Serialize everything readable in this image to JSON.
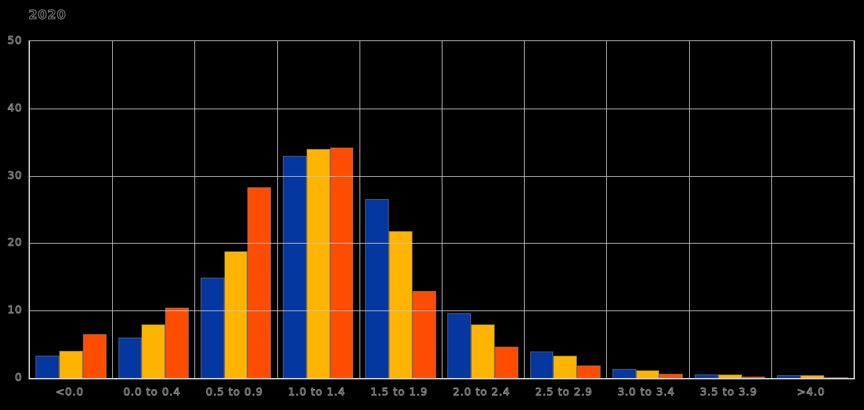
{
  "title": "2020",
  "colors": {
    "background": "#000000",
    "grid": "#c6c6c6",
    "axis_line": "#cdcdcd",
    "bar_border": "#686868",
    "text_outline": "#919191",
    "series_blue": "#0437a0",
    "series_yellow": "#ffb400",
    "series_orange": "#ff4d00"
  },
  "chart_data": {
    "type": "bar",
    "title": "2020",
    "xlabel": "",
    "ylabel": "",
    "ylim": [
      0,
      50
    ],
    "yticks": [
      0,
      10,
      20,
      30,
      40,
      50
    ],
    "grid": true,
    "legend": false,
    "categories": [
      "<0.0",
      "0.0 to 0.4",
      "0.5 to 0.9",
      "1.0 to 1.4",
      "1.5 to 1.9",
      "2.0 to 2.4",
      "2.5 to 2.9",
      "3.0 to 3.4",
      "3.5 to 3.9",
      ">4.0"
    ],
    "series": [
      {
        "name": "blue",
        "color": "#0437a0",
        "values": [
          3.3,
          6.0,
          14.9,
          33.0,
          26.6,
          9.6,
          3.9,
          1.3,
          0.5,
          0.4
        ]
      },
      {
        "name": "yellow",
        "color": "#ffb400",
        "values": [
          4.0,
          8.0,
          18.8,
          34.0,
          21.8,
          8.0,
          3.3,
          1.1,
          0.5,
          0.4
        ]
      },
      {
        "name": "orange",
        "color": "#ff4d00",
        "values": [
          6.5,
          10.4,
          28.3,
          34.2,
          12.9,
          4.6,
          1.9,
          0.6,
          0.2,
          0.15
        ]
      }
    ]
  }
}
